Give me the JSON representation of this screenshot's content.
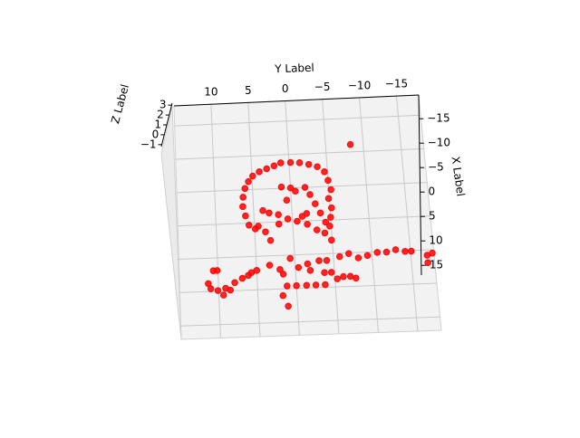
{
  "chart_data": {
    "type": "scatter3d",
    "x_label": "X Label",
    "y_label": "Y Label",
    "z_label": "Z Label",
    "color": "#ff0000",
    "xlim": [
      -18,
      17
    ],
    "ylim": [
      15,
      -18
    ],
    "zlim": [
      -1.2,
      3.2
    ],
    "xticks": [
      {
        "value": -15,
        "label": "−15"
      },
      {
        "value": -10,
        "label": "−10"
      },
      {
        "value": -5,
        "label": "−5"
      },
      0,
      5,
      10,
      15
    ],
    "yticks": [
      10,
      5,
      0,
      {
        "value": -5,
        "label": "−5"
      },
      {
        "value": -10,
        "label": "−10"
      },
      {
        "value": -15,
        "label": "−15"
      }
    ],
    "zticks": [
      3,
      2,
      1,
      0,
      {
        "value": -1,
        "label": "−1"
      }
    ],
    "grid": true,
    "x": [
      0.3,
      -1.1,
      -2.5,
      -3.9,
      -5.2,
      -6.2,
      -7.0,
      -7.6,
      -8.0,
      -8.4,
      -8.8,
      -8.8,
      -8.7,
      -8.4,
      -8.0,
      -7.2,
      -5.9,
      -4.5,
      -3.2,
      -1.8,
      -0.4,
      0.9,
      1.9,
      1.4,
      0.5,
      0.0,
      -0.4,
      -1.1,
      -1.4,
      -1.8,
      0.5,
      1.4,
      2.7,
      0.9,
      0.3,
      -3.2,
      -4.5,
      -5.0,
      -3.9,
      -2.5,
      -1.1,
      -0.7,
      -5.0,
      -5.2,
      -1.1,
      0.3,
      3.0,
      -11.1,
      6.9,
      6.9,
      8.8,
      9.6,
      9.9,
      9.6,
      8.8,
      8.2,
      7.4,
      7.1,
      6.4,
      7.1,
      7.8,
      5.5,
      6.9,
      6.4,
      6.0,
      6.0,
      7.8,
      7.8,
      8.8,
      9.6,
      9.6,
      9.6,
      9.6,
      9.6,
      11.0,
      12.6,
      5.5,
      5.1,
      5.8,
      5.5,
      5.1,
      5.1,
      4.8,
      5.1,
      5.1,
      5.8,
      5.5,
      6.9,
      8.5,
      8.8,
      8.5,
      10.6,
      9.9,
      7.8,
      7.4
    ],
    "y": [
      5.7,
      6.1,
      6.4,
      6.3,
      6.0,
      5.5,
      4.9,
      4.0,
      3.0,
      2.0,
      1.1,
      -0.2,
      -1.4,
      -2.6,
      -3.7,
      -4.6,
      -5.0,
      -5.3,
      -4.9,
      -5.2,
      -5.0,
      -4.8,
      -4.1,
      -3.1,
      -1.9,
      -0.6,
      0.6,
      1.8,
      3.0,
      3.8,
      4.5,
      3.6,
      3.0,
      4.9,
      1.8,
      0.6,
      -0.6,
      -1.9,
      -2.5,
      -3.1,
      -1.9,
      -1.3,
      0.0,
      1.2,
      -3.7,
      -4.3,
      -4.9,
      -8.3,
      10.6,
      10.1,
      11.3,
      11.0,
      10.1,
      9.1,
      7.9,
      6.9,
      5.7,
      5.0,
      3.3,
      2.0,
      1.6,
      0.6,
      -0.4,
      -1.6,
      -3.1,
      -4.1,
      -3.7,
      -4.6,
      -5.3,
      -3.7,
      -2.5,
      -1.3,
      0.0,
      1.2,
      1.8,
      1.2,
      -5.8,
      -7.0,
      -8.2,
      -9.4,
      -10.7,
      -11.9,
      -13.1,
      -14.3,
      -15.1,
      -17.1,
      -17.8,
      -17.1,
      -7.0,
      -7.7,
      -6.1,
      9.4,
      8.5,
      6.1,
      -1.9
    ]
  }
}
